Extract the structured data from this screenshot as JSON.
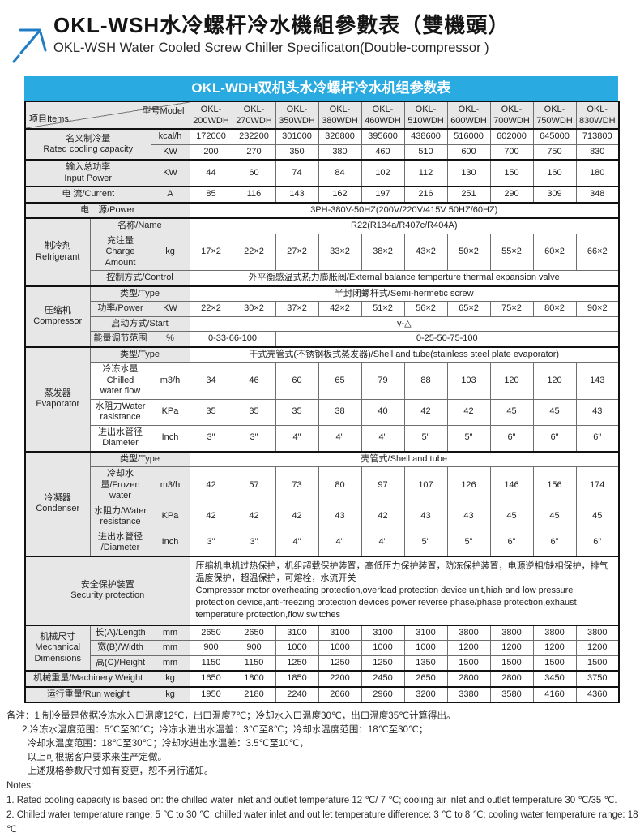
{
  "page": {
    "title_zh": "OKL-WSH水冷螺杆冷水機組參數表（雙機頭）",
    "title_en": "OKL-WSH Water Cooled Screw Chiller Specificaton(Double-compressor )"
  },
  "colors": {
    "banner_blue": "#29ABE2",
    "logo_blue": "#1F7DC4",
    "header_gray": "#e7e7e7"
  },
  "table": {
    "banner": "OKL-WDH双机头水冷螺杆冷水机组参数表",
    "corner": {
      "items": "项目Items",
      "model": "型号Model"
    },
    "models": [
      "OKL-\n200WDH",
      "OKL-\n270WDH",
      "OKL-\n350WDH",
      "OKL-\n380WDH",
      "OKL-\n460WDH",
      "OKL-\n510WDH",
      "OKL-\n600WDH",
      "OKL-\n700WDH",
      "OKL-\n750WDH",
      "OKL-\n830WDH"
    ],
    "rows": [
      {
        "sec": true,
        "cells": [
          {
            "corner": true,
            "cs": 3
          },
          {
            "heads": true
          }
        ]
      },
      {
        "sec": true,
        "cells": [
          {
            "t": "名义制冷量\nRated cooling capacity",
            "cs": 2,
            "rs": 2
          },
          {
            "t": "kcal/h",
            "c": "u"
          },
          {
            "vals": [
              "172000",
              "232200",
              "301000",
              "326800",
              "395600",
              "438600",
              "516000",
              "602000",
              "645000",
              "713800"
            ]
          }
        ]
      },
      {
        "cells": [
          {
            "t": "KW",
            "c": "u"
          },
          {
            "vals": [
              "200",
              "270",
              "350",
              "380",
              "460",
              "510",
              "600",
              "700",
              "750",
              "830"
            ]
          }
        ]
      },
      {
        "sec": true,
        "cells": [
          {
            "t": "输入总功率\nInput Power",
            "cs": 2
          },
          {
            "t": "KW",
            "c": "u"
          },
          {
            "vals": [
              "44",
              "60",
              "74",
              "84",
              "102",
              "112",
              "130",
              "150",
              "160",
              "180"
            ]
          }
        ]
      },
      {
        "sec": true,
        "cells": [
          {
            "t": "电 流/Current",
            "cs": 2
          },
          {
            "t": "A",
            "c": "u"
          },
          {
            "vals": [
              "85",
              "116",
              "143",
              "162",
              "197",
              "216",
              "251",
              "290",
              "309",
              "348"
            ]
          }
        ]
      },
      {
        "sec": true,
        "cells": [
          {
            "t": "电　源/Power",
            "cs": 3
          },
          {
            "t": "3PH-380V-50HZ(200V/220V/415V  50HZ/60HZ)",
            "c": "v",
            "cs": 10
          }
        ]
      },
      {
        "sec": true,
        "cells": [
          {
            "t": "制冷剂\nRefrigerant",
            "rs": 3
          },
          {
            "t": "名称/Name",
            "cs": 2
          },
          {
            "t": "R22(R134a/R407c/R404A)",
            "c": "v",
            "cs": 10
          }
        ]
      },
      {
        "cells": [
          {
            "t": "充注量\nCharge Amount"
          },
          {
            "t": "kg",
            "c": "u"
          },
          {
            "vals": [
              "17×2",
              "22×2",
              "27×2",
              "33×2",
              "38×2",
              "43×2",
              "50×2",
              "55×2",
              "60×2",
              "66×2"
            ]
          }
        ]
      },
      {
        "cells": [
          {
            "t": "控制方式/Control",
            "cs": 2
          },
          {
            "t": "外平衡感温式热力膨胀阀/External balance temperture thermal expansion valve",
            "c": "v",
            "cs": 10
          }
        ]
      },
      {
        "sec": true,
        "cells": [
          {
            "t": "压缩机\nCompressor",
            "rs": 4
          },
          {
            "t": "类型/Type",
            "cs": 2
          },
          {
            "t": "半封闭螺杆式/Semi-hermetic screw",
            "c": "v",
            "cs": 10
          }
        ]
      },
      {
        "cells": [
          {
            "t": "功率/Power"
          },
          {
            "t": "KW",
            "c": "u"
          },
          {
            "vals": [
              "22×2",
              "30×2",
              "37×2",
              "42×2",
              "51×2",
              "56×2",
              "65×2",
              "75×2",
              "80×2",
              "90×2"
            ]
          }
        ]
      },
      {
        "cells": [
          {
            "t": "启动方式/Start",
            "cs": 2
          },
          {
            "t": "γ-△",
            "c": "v",
            "cs": 10
          }
        ]
      },
      {
        "cells": [
          {
            "t": "能量调节范围"
          },
          {
            "t": "%",
            "c": "u"
          },
          {
            "t": "0-33-66-100",
            "c": "v",
            "cs": 2
          },
          {
            "t": "0-25-50-75-100",
            "c": "v",
            "cs": 8
          }
        ]
      },
      {
        "sec": true,
        "cells": [
          {
            "t": "蒸发器\nEvaporator",
            "rs": 4
          },
          {
            "t": "类型/Type",
            "cs": 2
          },
          {
            "t": "干式壳管式(不锈钢板式蒸发器)/Shell and tube(stainless steel plate evaporator)",
            "c": "v",
            "cs": 10
          }
        ]
      },
      {
        "cells": [
          {
            "t": "冷冻水量Chilled\nwater flow",
            "c": "w"
          },
          {
            "t": "m3/h",
            "c": "w"
          },
          {
            "vals": [
              "34",
              "46",
              "60",
              "65",
              "79",
              "88",
              "103",
              "120",
              "120",
              "143"
            ]
          }
        ]
      },
      {
        "cells": [
          {
            "t": "水阻力Water\nrasistance",
            "c": "w"
          },
          {
            "t": "KPa",
            "c": "w"
          },
          {
            "vals": [
              "35",
              "35",
              "35",
              "38",
              "40",
              "42",
              "42",
              "45",
              "45",
              "43"
            ]
          }
        ]
      },
      {
        "cells": [
          {
            "t": "进出水管径\nDiameter",
            "c": "w"
          },
          {
            "t": "Inch",
            "c": "w"
          },
          {
            "vals": [
              "3\"",
              "3\"",
              "4\"",
              "4\"",
              "4\"",
              "5\"",
              "5\"",
              "6\"",
              "6\"",
              "6\""
            ]
          }
        ]
      },
      {
        "sec": true,
        "cells": [
          {
            "t": "冷凝器\nCondenser",
            "rs": 4
          },
          {
            "t": "类型/Type",
            "cs": 2
          },
          {
            "t": "壳管式/Shell and tube",
            "c": "v",
            "cs": 10
          }
        ]
      },
      {
        "cells": [
          {
            "t": "冷却水量/Frozen\nwater"
          },
          {
            "t": "m3/h",
            "c": "u"
          },
          {
            "vals": [
              "42",
              "57",
              "73",
              "80",
              "97",
              "107",
              "126",
              "146",
              "156",
              "174"
            ]
          }
        ]
      },
      {
        "cells": [
          {
            "t": "水阻力/Water\nresistance"
          },
          {
            "t": "KPa",
            "c": "u"
          },
          {
            "vals": [
              "42",
              "42",
              "42",
              "43",
              "42",
              "43",
              "43",
              "45",
              "45",
              "45"
            ]
          }
        ]
      },
      {
        "cells": [
          {
            "t": "进出水管径\n/Diameter"
          },
          {
            "t": "Inch",
            "c": "u"
          },
          {
            "vals": [
              "3\"",
              "3\"",
              "4\"",
              "4\"",
              "4\"",
              "5\"",
              "5\"",
              "6\"",
              "6\"",
              "6\""
            ]
          }
        ]
      },
      {
        "sec": true,
        "cells": [
          {
            "t": "安全保护装置\nSecurity protection",
            "cs": 3
          },
          {
            "t": "压缩机电机过热保护，机组超载保护装置，高低压力保护装置，防冻保护装置，电源逆相/缺相保护，排气温度保护，超温保护，可熔栓，水流开关\nCompressor motor overheating protection,overload protection device unit,hiah and low pressure protection device,anti-freezing protection devices,power reverse phase/phase protection,exhaust temperature protection,flow switches",
            "c": "vl",
            "cs": 10
          }
        ]
      },
      {
        "sec": true,
        "cells": [
          {
            "t": "机械尺寸\nMechanical\nDimensions",
            "rs": 3
          },
          {
            "t": "长(A)/Length"
          },
          {
            "t": "mm",
            "c": "u"
          },
          {
            "vals": [
              "2650",
              "2650",
              "3100",
              "3100",
              "3100",
              "3100",
              "3800",
              "3800",
              "3800",
              "3800"
            ]
          }
        ]
      },
      {
        "cells": [
          {
            "t": "宽(B)/Width"
          },
          {
            "t": "mm",
            "c": "u"
          },
          {
            "vals": [
              "900",
              "900",
              "1000",
              "1000",
              "1000",
              "1000",
              "1200",
              "1200",
              "1200",
              "1200"
            ]
          }
        ]
      },
      {
        "cells": [
          {
            "t": "高(C)/Height"
          },
          {
            "t": "mm",
            "c": "u"
          },
          {
            "vals": [
              "1150",
              "1150",
              "1250",
              "1250",
              "1250",
              "1350",
              "1500",
              "1500",
              "1500",
              "1500"
            ]
          }
        ]
      },
      {
        "sec": true,
        "cells": [
          {
            "t": "机械重量/Machinery Weight",
            "cs": 2
          },
          {
            "t": "kg",
            "c": "u"
          },
          {
            "vals": [
              "1650",
              "1800",
              "1850",
              "2200",
              "2450",
              "2650",
              "2800",
              "2800",
              "3450",
              "3750"
            ]
          }
        ]
      },
      {
        "sec": true,
        "cells": [
          {
            "t": "运行重量/Run weight",
            "cs": 2
          },
          {
            "t": "kg",
            "c": "u"
          },
          {
            "vals": [
              "1950",
              "2180",
              "2240",
              "2660",
              "2960",
              "3200",
              "3380",
              "3580",
              "4160",
              "4360"
            ]
          }
        ]
      }
    ]
  },
  "notes": {
    "zh_lines": [
      "备注：1.制冷量是依据冷冻水入口温度12℃，出口温度7℃；冷却水入口温度30℃，出口温度35℃计算得出。",
      "      2.冷冻水温度范围：5℃至30℃；冷冻水进出水温差：3℃至8℃；冷却水温度范围：18℃至30℃；",
      "        冷却水温度范围：18℃至30℃；冷却水进出水温差：3.5℃至10℃，",
      "        以上可根据客户要求来生产定做。",
      "        上述规格参数尺寸如有变更，恕不另行通知。"
    ],
    "en_lines": [
      "Notes:",
      "1. Rated cooling capacity is based on: the chilled water inlet and outlet temperature 12 ℃/ 7 ℃; cooling air inlet and outlet temperature 30 ℃/35 ℃.",
      "2. Chilled water temperature range: 5 ℃ to 30 ℃; chilled water inlet and out let temperature difference: 3 ℃ to 8 ℃; cooling water temperature range: 18 ℃"
    ]
  }
}
